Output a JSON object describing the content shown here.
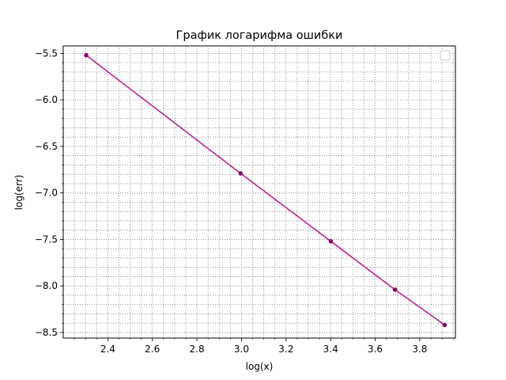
{
  "chart_data": {
    "type": "line",
    "title": "График логарифма ошибки",
    "xlabel": "log(x)",
    "ylabel": "log(err)",
    "xlim": [
      2.2,
      3.96
    ],
    "ylim": [
      -8.56,
      -5.42
    ],
    "x_ticks": [
      2.4,
      2.6,
      2.8,
      3.0,
      3.2,
      3.4,
      3.6,
      3.8
    ],
    "x_tick_labels": [
      "2.4",
      "2.6",
      "2.8",
      "3.0",
      "3.2",
      "3.4",
      "3.6",
      "3.8"
    ],
    "y_ticks": [
      -8.5,
      -8.0,
      -7.5,
      -7.0,
      -6.5,
      -6.0,
      -5.5
    ],
    "y_tick_labels": [
      "−8.5",
      "−8.0",
      "−7.5",
      "−7.0",
      "−6.5",
      "−6.0",
      "−5.5"
    ],
    "grid": "minor dotted",
    "legend": "upper-right, empty",
    "series": [
      {
        "color": "#c0248c",
        "marker_color": "#8b0a6e",
        "x": [
          2.303,
          2.996,
          3.401,
          3.689,
          3.912
        ],
        "y": [
          -5.52,
          -6.79,
          -7.52,
          -8.04,
          -8.42
        ]
      }
    ]
  }
}
